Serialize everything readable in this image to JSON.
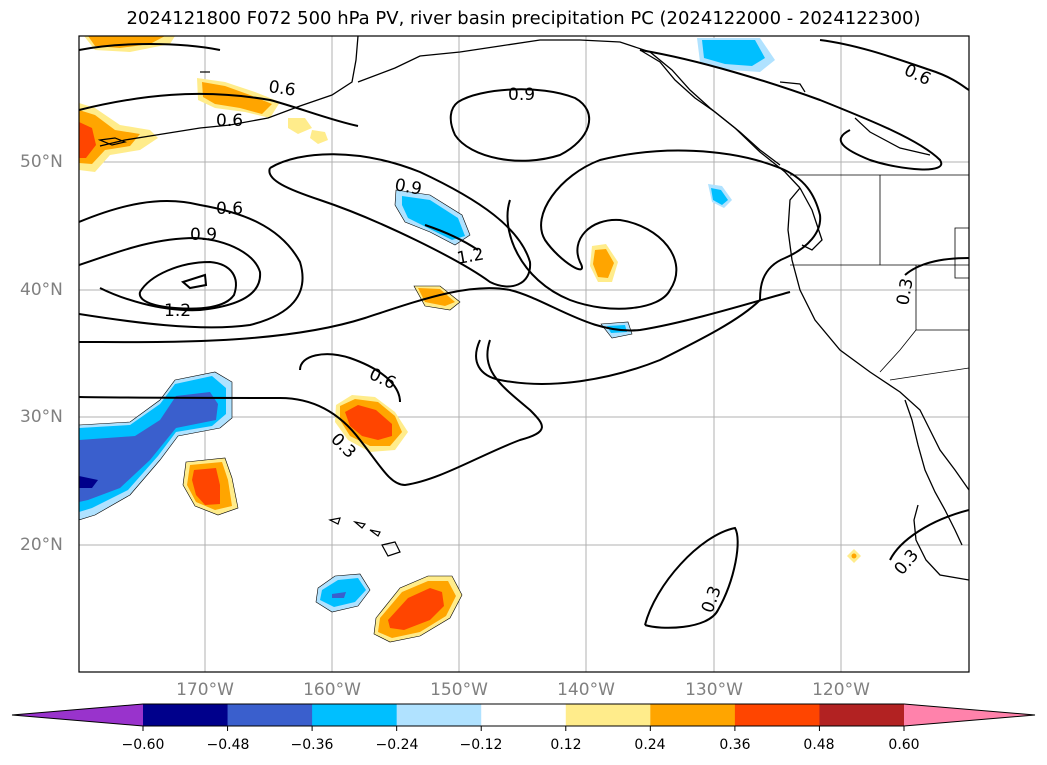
{
  "title": "2024121800 F072 500 hPa PV, river basin precipitation PC (2024122000 - 2024122300)",
  "map": {
    "latitude_labels": [
      "50°N",
      "40°N",
      "30°N",
      "20°N"
    ],
    "longitude_labels": [
      "170°W",
      "160°W",
      "150°W",
      "140°W",
      "130°W",
      "120°W"
    ],
    "contour_labels": [
      "0.6",
      "0.6",
      "0.9",
      "0.9",
      "0.6",
      "0.9",
      "1.2",
      "1.2",
      "0.6",
      "0.3",
      "0.3",
      "0.3",
      "0.3",
      "0.6"
    ]
  },
  "colorbar": {
    "ticks": [
      "−0.60",
      "−0.48",
      "−0.36",
      "−0.24",
      "−0.12",
      "0.12",
      "0.24",
      "0.36",
      "0.48",
      "0.60"
    ],
    "colors": [
      "#9933cc",
      "#00008b",
      "#3a5fcd",
      "#00bfff",
      "#b0e2ff",
      "#ffffff",
      "#ffec8b",
      "#ffa500",
      "#ff4500",
      "#b22222",
      "#ff82ab"
    ]
  },
  "palette": {
    "light_yellow": "#ffec8b",
    "orange": "#ffa500",
    "red_orange": "#ff4500",
    "light_blue": "#b0e2ff",
    "deep_sky": "#00bfff",
    "royal_blue": "#3a5fcd",
    "navy": "#00008b"
  }
}
